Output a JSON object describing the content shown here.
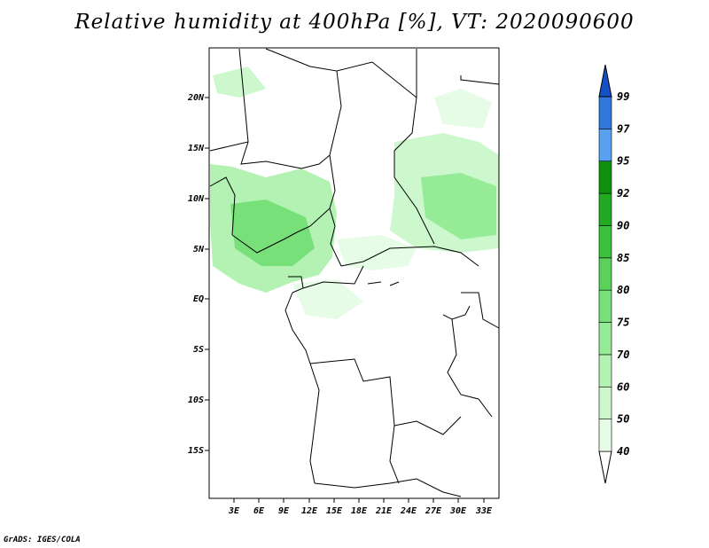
{
  "title": "Relative humidity at 400hPa [%], VT: 2020090600",
  "credit": "GrADS: IGES/COLA",
  "lat_labels": [
    "20N",
    "15N",
    "10N",
    "5N",
    "EQ",
    "5S",
    "10S",
    "15S"
  ],
  "lon_labels": [
    "3E",
    "6E",
    "9E",
    "12E",
    "15E",
    "18E",
    "21E",
    "24E",
    "27E",
    "30E",
    "33E"
  ],
  "colorbar": {
    "levels": [
      "40",
      "50",
      "60",
      "70",
      "75",
      "80",
      "85",
      "90",
      "92",
      "95",
      "97",
      "99"
    ],
    "colors": [
      "#ffffff",
      "#e6fce6",
      "#cdf7cd",
      "#b3f2b3",
      "#96eb96",
      "#78e078",
      "#5ad25a",
      "#3cc13c",
      "#23aa23",
      "#0f910f",
      "#5aa0f0",
      "#3278dc",
      "#1450c8"
    ]
  }
}
